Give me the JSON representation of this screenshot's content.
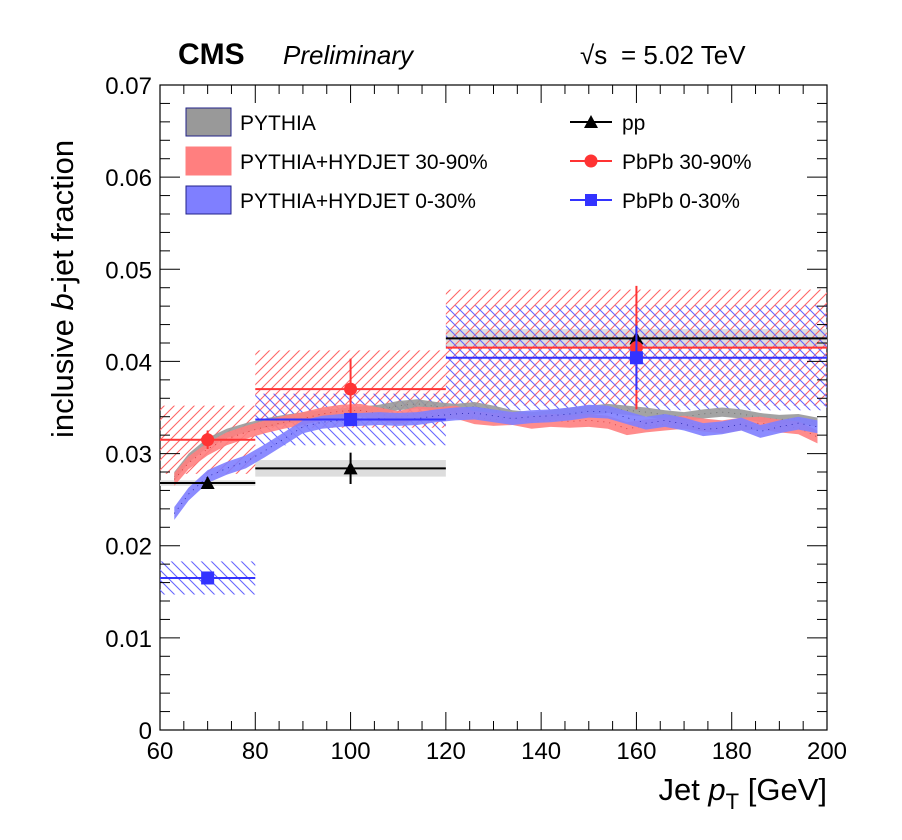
{
  "header": {
    "experiment": "CMS",
    "status": "Preliminary",
    "energy_sqrt": "√s",
    "energy_value": "= 5.02 TeV"
  },
  "axes": {
    "ylabel_pre": "inclusive ",
    "ylabel_b": "b",
    "ylabel_post": "-jet fraction",
    "xlabel_pre": "Jet ",
    "xlabel_p": "p",
    "xlabel_sub": "T",
    "xlabel_post": " [GeV]"
  },
  "legend": {
    "pythia": "PYTHIA",
    "hyd3090": "PYTHIA+HYDJET 30-90%",
    "hyd030": "PYTHIA+HYDJET 0-30%",
    "pp": "pp",
    "pbpb3090": "PbPb 30-90%",
    "pbpb030": "PbPb 0-30%"
  },
  "colors": {
    "pythia": "#999999",
    "hyd3090": "#ff7f7f",
    "hyd030": "#7f7fff",
    "pp": "#000000",
    "pbpb3090": "#ff3333",
    "pbpb030": "#3333ff"
  },
  "chart_data": {
    "type": "line",
    "xlim": [
      60,
      200
    ],
    "ylim": [
      0,
      0.07
    ],
    "x_ticks": [
      "60",
      "80",
      "100",
      "120",
      "140",
      "160",
      "180",
      "200"
    ],
    "y_ticks": [
      "0",
      "0.01",
      "0.02",
      "0.03",
      "0.04",
      "0.05",
      "0.06",
      "0.07"
    ],
    "data_series": [
      {
        "name": "pp",
        "marker": "triangle",
        "points": [
          {
            "x": 70,
            "xlo": 60,
            "xhi": 80,
            "y": 0.0268,
            "stat": 0.0005,
            "syst": 0.0003
          },
          {
            "x": 100,
            "xlo": 80,
            "xhi": 120,
            "y": 0.0284,
            "stat": 0.0017,
            "syst": 0.0009
          },
          {
            "x": 160,
            "xlo": 120,
            "xhi": 200,
            "y": 0.0425,
            "stat": 0.002,
            "syst": 0.001
          }
        ]
      },
      {
        "name": "PbPb 30-90%",
        "marker": "circle",
        "points": [
          {
            "x": 70,
            "xlo": 60,
            "xhi": 80,
            "y": 0.0315,
            "stat": 0.001,
            "syst": 0.0037
          },
          {
            "x": 100,
            "xlo": 80,
            "xhi": 120,
            "y": 0.037,
            "stat": 0.0033,
            "syst": 0.0042
          },
          {
            "x": 160,
            "xlo": 120,
            "xhi": 200,
            "y": 0.0415,
            "stat": 0.0067,
            "syst": 0.0063
          }
        ]
      },
      {
        "name": "PbPb 0-30%",
        "marker": "square",
        "points": [
          {
            "x": 70,
            "xlo": 60,
            "xhi": 80,
            "y": 0.0165,
            "stat": 0.0003,
            "syst": 0.0018
          },
          {
            "x": 100,
            "xlo": 80,
            "xhi": 120,
            "y": 0.0337,
            "stat": 0.0004,
            "syst": 0.0028
          },
          {
            "x": 160,
            "xlo": 120,
            "xhi": 200,
            "y": 0.0404,
            "stat": 0.0035,
            "syst": 0.0057
          }
        ]
      }
    ],
    "mc_bands": [
      {
        "name": "PYTHIA",
        "halfwidth": 0.0005,
        "x": [
          63,
          66,
          70,
          74,
          78,
          82,
          86,
          90,
          94,
          98,
          102,
          106,
          110,
          114,
          118,
          122,
          126,
          130,
          134,
          138,
          142,
          146,
          150,
          154,
          158,
          162,
          166,
          170,
          174,
          178,
          182,
          186,
          190,
          194,
          198
        ],
        "y": [
          0.0275,
          0.0295,
          0.0312,
          0.0322,
          0.0328,
          0.0333,
          0.0337,
          0.034,
          0.0342,
          0.0344,
          0.0346,
          0.0348,
          0.0352,
          0.0354,
          0.0351,
          0.0349,
          0.0351,
          0.0347,
          0.0342,
          0.034,
          0.0342,
          0.0345,
          0.0347,
          0.0349,
          0.0347,
          0.0345,
          0.0342,
          0.034,
          0.0343,
          0.0345,
          0.0343,
          0.0339,
          0.0337,
          0.0338,
          0.0334
        ]
      },
      {
        "name": "PYTHIA+HYDJET 30-90%",
        "halfwidth": 0.0007,
        "x": [
          63,
          66,
          70,
          74,
          78,
          82,
          86,
          90,
          94,
          98,
          102,
          106,
          110,
          114,
          118,
          122,
          126,
          130,
          134,
          138,
          142,
          146,
          150,
          154,
          158,
          162,
          166,
          170,
          174,
          178,
          182,
          186,
          190,
          194,
          198
        ],
        "y": [
          0.0272,
          0.029,
          0.0305,
          0.0316,
          0.0323,
          0.0329,
          0.0334,
          0.0338,
          0.0343,
          0.0346,
          0.0347,
          0.0343,
          0.0339,
          0.0344,
          0.0343,
          0.0345,
          0.0339,
          0.0337,
          0.0338,
          0.0334,
          0.0336,
          0.0335,
          0.0336,
          0.0334,
          0.0327,
          0.033,
          0.0332,
          0.0334,
          0.0331,
          0.0329,
          0.0332,
          0.0333,
          0.033,
          0.0328,
          0.0318
        ]
      },
      {
        "name": "PYTHIA+HYDJET 0-30%",
        "halfwidth": 0.0007,
        "x": [
          63,
          66,
          70,
          74,
          78,
          82,
          86,
          90,
          94,
          98,
          102,
          106,
          110,
          114,
          118,
          122,
          126,
          130,
          134,
          138,
          142,
          146,
          150,
          154,
          158,
          162,
          166,
          170,
          174,
          178,
          182,
          186,
          190,
          194,
          198
        ],
        "y": [
          0.0235,
          0.0256,
          0.0275,
          0.0284,
          0.0291,
          0.0303,
          0.0316,
          0.0329,
          0.0334,
          0.0336,
          0.0337,
          0.0338,
          0.0337,
          0.0338,
          0.0341,
          0.0343,
          0.0344,
          0.0341,
          0.0338,
          0.034,
          0.0341,
          0.0343,
          0.0346,
          0.0345,
          0.0339,
          0.0333,
          0.0336,
          0.0332,
          0.0326,
          0.0328,
          0.0332,
          0.0324,
          0.0329,
          0.0333,
          0.0329
        ]
      }
    ]
  }
}
